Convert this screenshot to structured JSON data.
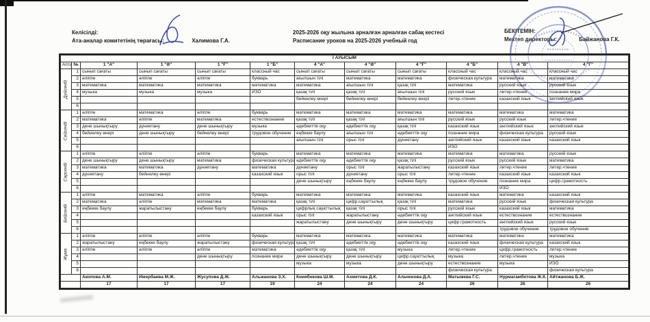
{
  "header": {
    "agreed_label": "Келісілді:",
    "agreed_role": "Ата-аналар комитетінің төрағасы:",
    "agreed_name": "Халимова Г.А.",
    "title_kk": "2025-2026 оқу жылына арналған арналған сабақ кестесі",
    "title_ru": "Расписание уроков на  2025-2026 учебный год",
    "approved_label": "БЕКІТЕМІН:",
    "approved_role": "Мектеп директоры:",
    "approved_name": "Байжанова Г.К."
  },
  "colors": {
    "stamp": "#4553ae",
    "signature": "#2c3a9e",
    "ink": "#1b1b1b"
  },
  "table": {
    "shift": "І АУЫСЫМ",
    "week_header": "Апта",
    "num_header": "№",
    "classes": [
      "1 \"А\"",
      "1 \"Ә\"",
      "1 \"Ғ\"",
      "1 \"Б\"",
      "4 \"А\"",
      "4 \"Ә\"",
      "4 \"Ғ\"",
      "4 \"Б\"",
      "4 \"В\"",
      "4 \"Г\""
    ],
    "days": [
      {
        "name": "Дүйсенбі",
        "rows": [
          [
            "сынып сағаты",
            "сынып сағаты",
            "сынып сағаты",
            "классный час",
            "сынып сағаты",
            "сынып сағаты",
            "сынып сағаты",
            "классный час",
            "классный час",
            "классный час"
          ],
          [
            "әліппе",
            "әліппе",
            "әліппе",
            "букварь",
            "ағылшын тілі",
            "математика",
            "математика",
            "физическая культура",
            "математика",
            "математика"
          ],
          [
            "математика",
            "математика",
            "математика",
            "математика",
            "математика",
            "ағылшын тілі",
            "қазақ тілі",
            "математика",
            "русский язык",
            "русский язык"
          ],
          [
            "музыка",
            "музыка",
            "музыка",
            "ИЗО",
            "қазақ тілі",
            "қазақ тілі",
            "ағылшын тілі",
            "русский язык",
            "литер.чтение",
            "познание мира"
          ],
          [
            "",
            "",
            "",
            "",
            "бейнелеу өнері",
            "бейнелеу өнері",
            "бейнелеу өнері",
            "литер.чтение",
            "казахский язык",
            "английский язык"
          ],
          [
            "",
            "",
            "",
            "",
            "",
            "",
            "",
            "",
            "",
            ""
          ]
        ]
      },
      {
        "name": "Сейсенбі",
        "rows": [
          [
            "әліппе",
            "математика",
            "әліппе",
            "букварь",
            "математика",
            "математика",
            "математика",
            "математика",
            "математика",
            "математика"
          ],
          [
            "математика",
            "әліппе",
            "математика",
            "естествознание",
            "қазақ тілі",
            "қазақ тілі",
            "ағылшын тілі",
            "русский язык",
            "русский язык",
            "литер.чтение"
          ],
          [
            "дене шынықтыру",
            "дүниетану",
            "дене шынықтыру",
            "музыка",
            "әдебиеттік оқу",
            "әдебиеттік оқу",
            "қазақ тілі",
            "казахский язык",
            "английский язык",
            "английский язык"
          ],
          [
            "бейнелеу өнері",
            "дене шынықтыру",
            "бейнелеу өнері",
            "трудовое обучение",
            "еңбекке баулу",
            "ағылшын тілі",
            "әдебиеттік оқу",
            "познание мира",
            "физическая культура",
            "русский язык"
          ],
          [
            "",
            "",
            "",
            "",
            "ағылшын тілі",
            "орыс тілі",
            "дүниетану",
            "английский язык",
            "казахский язык",
            "казахский язык"
          ],
          [
            "",
            "",
            "",
            "",
            "",
            "",
            "",
            "ИЗО",
            "",
            ""
          ]
        ]
      },
      {
        "name": "Сәрсенбі",
        "rows": [
          [
            "әліппе",
            "әліппе",
            "әліппе",
            "букварь",
            "математика",
            "математика",
            "математика",
            "математика",
            "математика",
            "русский язык"
          ],
          [
            "дене шынықтыру",
            "дене шынықтыру",
            "математика",
            "физическая культура",
            "әдебиеттік оқу",
            "әдебиеттік оқу",
            "қазақ тілі",
            "русский язык",
            "русский язык",
            "математика"
          ],
          [
            "математика",
            "математика",
            "дүниетану",
            "математика",
            "дүниетану",
            "орыс тілі",
            "жаратылыстану",
            "казахский язык",
            "литер.чтение",
            "литер.чтение"
          ],
          [
            "дүниетану",
            "бейнелеу өнері",
            "",
            "казахский язык",
            "орыс тілі",
            "дүниетану",
            "орыс тілі",
            "литер.чтение",
            "казахский язык",
            "казахский язык"
          ],
          [
            "",
            "",
            "",
            "",
            "дене шынықтыру",
            "еңбекке баулу",
            "еңбекке баулу",
            "трудовое обучение",
            "познание мира",
            "цифр.грамотность"
          ],
          [
            "",
            "",
            "",
            "",
            "",
            "",
            "",
            "",
            "ИЗО",
            ""
          ]
        ]
      },
      {
        "name": "Бейсенбі",
        "rows": [
          [
            "әліппе",
            "математика",
            "әліппе",
            "букварь",
            "математика",
            "математика",
            "математика",
            "казахский язык",
            "математика",
            "казахский язык"
          ],
          [
            "математика",
            "әліппе",
            "математика",
            "математика",
            "қазақ тілі",
            "цифр.сауаттылық",
            "қазақ тілі",
            "математика",
            "русский язык",
            "физическая культура"
          ],
          [
            "еңбекке баулу",
            "жаратылыстану",
            "еңбекке баулу",
            "букварь",
            "цифрлық сауаттылық",
            "қазақ тілі",
            "орыс тілі",
            "русский язык",
            "казахский язык",
            "математика"
          ],
          [
            "",
            "",
            "",
            "казахский язык",
            "орыс тілі",
            "жаратылыстану",
            "әдебиеттік оқу",
            "английский язык",
            "естествознание",
            "естествознание"
          ],
          [
            "",
            "",
            "",
            "",
            "жаратылыстану",
            "дене шынықтыру",
            "дене шынықтыру",
            "цифр.грамотность",
            "английский язык",
            "русский язык"
          ],
          [
            "",
            "",
            "",
            "",
            "",
            "",
            "",
            "",
            "трудовое обучение",
            "трудовое обучение"
          ]
        ]
      },
      {
        "name": "Жұма",
        "rows": [
          [
            "әліппе",
            "әліппе",
            "әліппе",
            "букварь",
            "математика",
            "математика",
            "математика",
            "математика",
            "математика",
            "математика"
          ],
          [
            "жаратылыстану",
            "еңбекке баулу",
            "жаратылыстану",
            "физическая культура",
            "қазақ тілі",
            "әдебиеттік оқу",
            "әдебиеттік оқу",
            "казахский язык",
            "физическая культура",
            "казахский язык"
          ],
          [
            "әліппе",
            "әліппе",
            "әліппе",
            "математика",
            "әдебиеттік оқу",
            "қазақ тілі",
            "музыка",
            "литер.чтение",
            "цифр.грамотность",
            "литер.чтение"
          ],
          [
            "",
            "",
            "дене шынықтыру",
            "познание мира",
            "дене шынықтыру",
            "дене шынықтыру",
            "цифр.сауаттылық",
            "музыка",
            "литер.чтение",
            "музыка"
          ],
          [
            "",
            "",
            "",
            "",
            "музыка",
            "музыка",
            "дене шынықтыру",
            "естествознание",
            "музыка",
            "ИЗО"
          ],
          [
            "",
            "",
            "",
            "",
            "",
            "",
            "",
            "физическая культура",
            "",
            "физическая культура"
          ]
        ]
      }
    ],
    "teachers": [
      "Акопова А.М.",
      "Имербаева М.Ж.",
      "Жусупова Д.Ж.",
      "Альжанова З.Х.",
      "Книябекова Ш.М.",
      "Ахметова Д.К.",
      "Альченова Д.А.",
      "Матыжева Г.С.",
      "Нурмагамбетова Ж.К.",
      "Айтжанова Б.Ж."
    ],
    "totals": [
      "17",
      "17",
      "17",
      "19",
      "24",
      "24",
      "24",
      "26",
      "26",
      "26"
    ]
  }
}
